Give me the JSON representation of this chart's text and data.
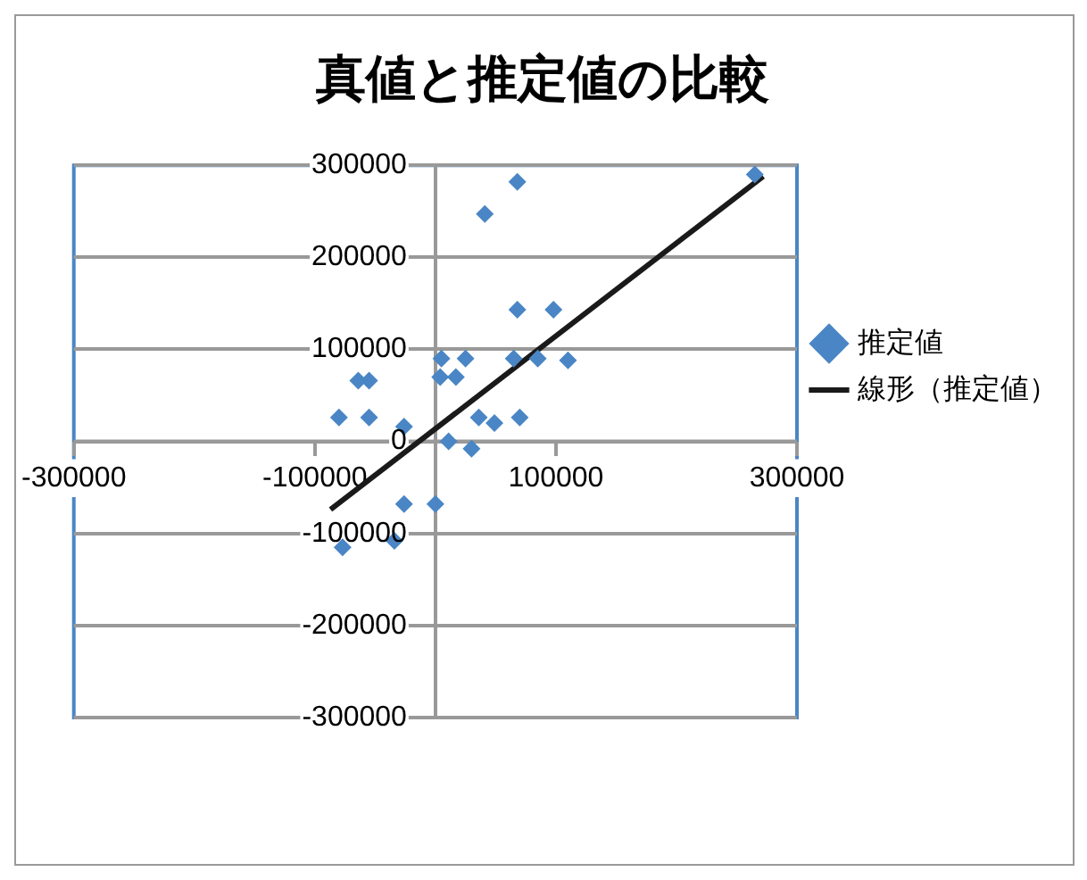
{
  "chart_data": {
    "type": "scatter",
    "title": "真値と推定値の比較",
    "marker": "diamond",
    "grid": "y",
    "legend": "right",
    "xlim": [
      -300000,
      300000
    ],
    "ylim": [
      -300000,
      300000
    ],
    "xticks": [
      -300000,
      -100000,
      100000,
      300000
    ],
    "yticks": [
      -300000,
      -200000,
      -100000,
      0,
      100000,
      200000,
      300000
    ],
    "series": [
      {
        "name": "推定値",
        "color": "#4a86c5",
        "x": [
          265000,
          68000,
          41000,
          68000,
          98000,
          5000,
          25000,
          65000,
          85000,
          110000,
          -64000,
          -55000,
          4000,
          17000,
          -80000,
          -55000,
          36000,
          70000,
          -26000,
          11000,
          30000,
          49000,
          0,
          -26000,
          -34000,
          -77000
        ],
        "values": [
          290000,
          282000,
          247000,
          143000,
          143000,
          90000,
          90000,
          90000,
          90000,
          88000,
          66000,
          66000,
          70000,
          70000,
          26000,
          26000,
          26000,
          26000,
          16000,
          0,
          -8000,
          20000,
          -68000,
          -68000,
          -108000,
          -115000
        ]
      },
      {
        "name": "線形（推定値）",
        "type": "line",
        "color": "#1a1a1a",
        "marker": "none",
        "x": [
          -87000,
          272000
        ],
        "values": [
          -74000,
          288000
        ]
      }
    ]
  }
}
